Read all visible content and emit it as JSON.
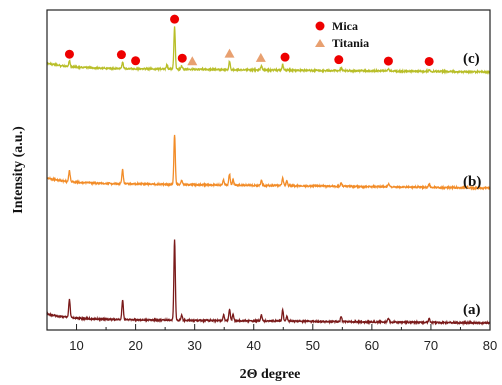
{
  "chart_data": {
    "type": "line",
    "xlabel": "2Θ degree",
    "ylabel": "Intensity (a.u.)",
    "xlim": [
      5,
      80
    ],
    "xticks": [
      10,
      20,
      30,
      40,
      50,
      60,
      70,
      80
    ],
    "y_ticks_shown": false,
    "grid": false,
    "legend": {
      "placement": "top-right",
      "entries": [
        {
          "label": "Mica",
          "marker": "circle",
          "color": "#ee0000"
        },
        {
          "label": "Titania",
          "marker": "triangle",
          "color": "#e8a070"
        }
      ]
    },
    "series": [
      {
        "name": "(a)",
        "color": "#7a1a1a",
        "peaks": [
          {
            "x": 8.8,
            "height": 18
          },
          {
            "x": 17.8,
            "height": 20
          },
          {
            "x": 26.6,
            "height": 80
          },
          {
            "x": 27.8,
            "height": 5
          },
          {
            "x": 34.9,
            "height": 6
          },
          {
            "x": 35.9,
            "height": 11
          },
          {
            "x": 36.5,
            "height": 7
          },
          {
            "x": 41.3,
            "height": 6
          },
          {
            "x": 44.9,
            "height": 11
          },
          {
            "x": 45.6,
            "height": 5
          },
          {
            "x": 54.8,
            "height": 5
          },
          {
            "x": 62.8,
            "height": 4
          },
          {
            "x": 69.7,
            "height": 4
          }
        ]
      },
      {
        "name": "(b)",
        "color": "#f28c28",
        "peaks": [
          {
            "x": 8.8,
            "height": 11
          },
          {
            "x": 17.8,
            "height": 14
          },
          {
            "x": 26.6,
            "height": 50
          },
          {
            "x": 27.8,
            "height": 4
          },
          {
            "x": 34.9,
            "height": 5
          },
          {
            "x": 35.9,
            "height": 11
          },
          {
            "x": 36.5,
            "height": 5
          },
          {
            "x": 41.3,
            "height": 5
          },
          {
            "x": 44.9,
            "height": 8
          },
          {
            "x": 45.6,
            "height": 5
          },
          {
            "x": 54.8,
            "height": 3
          },
          {
            "x": 62.8,
            "height": 3
          },
          {
            "x": 69.7,
            "height": 3
          }
        ]
      },
      {
        "name": "(c)",
        "color": "#b8be28",
        "peaks": [
          {
            "x": 8.8,
            "height": 6
          },
          {
            "x": 17.8,
            "height": 6
          },
          {
            "x": 25.3,
            "height": 4
          },
          {
            "x": 26.6,
            "height": 42
          },
          {
            "x": 27.8,
            "height": 3
          },
          {
            "x": 35.9,
            "height": 8
          },
          {
            "x": 41.3,
            "height": 4
          },
          {
            "x": 44.9,
            "height": 5
          },
          {
            "x": 54.8,
            "height": 3
          },
          {
            "x": 62.8,
            "height": 2
          },
          {
            "x": 69.7,
            "height": 2
          }
        ]
      }
    ],
    "peak_markers": [
      {
        "x": 8.8,
        "phase": "Mica"
      },
      {
        "x": 17.6,
        "phase": "Mica"
      },
      {
        "x": 20.0,
        "phase": "Mica"
      },
      {
        "x": 26.6,
        "phase": "Mica"
      },
      {
        "x": 27.9,
        "phase": "Mica"
      },
      {
        "x": 29.6,
        "phase": "Titania"
      },
      {
        "x": 35.9,
        "phase": "Titania"
      },
      {
        "x": 41.2,
        "phase": "Titania"
      },
      {
        "x": 45.3,
        "phase": "Mica"
      },
      {
        "x": 54.4,
        "phase": "Mica"
      },
      {
        "x": 62.8,
        "phase": "Mica"
      },
      {
        "x": 69.7,
        "phase": "Mica"
      }
    ]
  }
}
